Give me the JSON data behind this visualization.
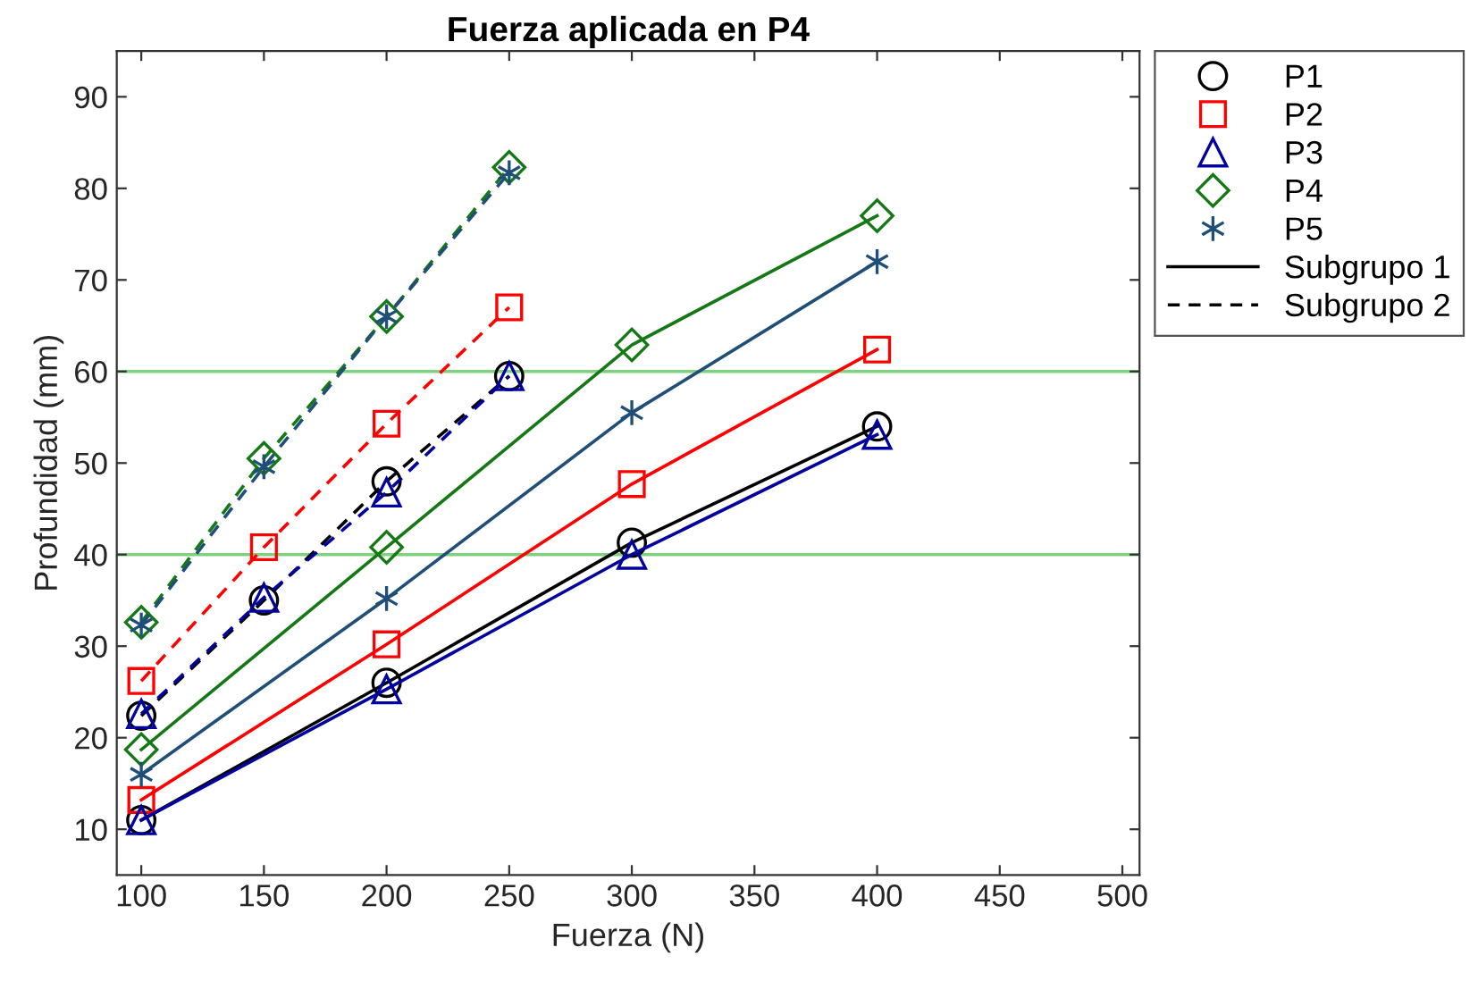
{
  "chart_data": {
    "type": "line",
    "title": "Fuerza aplicada en P4",
    "xlabel": "Fuerza (N)",
    "ylabel": "Profundidad (mm)",
    "xlim": [
      90,
      507
    ],
    "ylim": [
      5,
      95
    ],
    "xticks": [
      100,
      150,
      200,
      250,
      300,
      350,
      400,
      450,
      500
    ],
    "yticks": [
      10,
      20,
      30,
      40,
      50,
      60,
      70,
      80,
      90
    ],
    "grid": false,
    "legend": "right",
    "ref_lines": [
      {
        "axis": "y",
        "value": 40,
        "color": "#7fd17f"
      },
      {
        "axis": "y",
        "value": 60,
        "color": "#7fd17f"
      }
    ],
    "series": [
      {
        "name": "P1",
        "color": "#000000",
        "marker": "circle",
        "line_style": "solid",
        "x": [
          100,
          200,
          300,
          400
        ],
        "values": [
          11,
          26,
          41.3,
          54
        ]
      },
      {
        "name": "P2",
        "color": "#ff0000",
        "marker": "square",
        "line_style": "solid",
        "x": [
          100,
          200,
          300,
          400
        ],
        "values": [
          13.2,
          30.2,
          47.7,
          62.4
        ]
      },
      {
        "name": "P3",
        "color": "#0000a0",
        "marker": "triangle",
        "line_style": "solid",
        "x": [
          100,
          200,
          300,
          400
        ],
        "values": [
          11,
          25.3,
          40,
          53.1
        ]
      },
      {
        "name": "P4",
        "color": "#147814",
        "marker": "diamond",
        "line_style": "solid",
        "x": [
          100,
          200,
          300,
          400
        ],
        "values": [
          18.7,
          40.8,
          62.9,
          77
        ]
      },
      {
        "name": "P5",
        "color": "#1f4e79",
        "marker": "cross",
        "line_style": "solid",
        "x": [
          100,
          200,
          300,
          400
        ],
        "values": [
          16,
          35.2,
          55.5,
          72
        ]
      },
      {
        "color": "#000000",
        "marker": "circle",
        "line_style": "dashed",
        "x": [
          100,
          150,
          200,
          250
        ],
        "values": [
          22.4,
          35,
          48,
          59.5
        ]
      },
      {
        "color": "#ff0000",
        "marker": "square",
        "line_style": "dashed",
        "x": [
          100,
          150,
          200,
          250
        ],
        "values": [
          26.2,
          40.8,
          54.3,
          67
        ]
      },
      {
        "color": "#0000a0",
        "marker": "triangle",
        "line_style": "dashed",
        "x": [
          100,
          150,
          200,
          250
        ],
        "values": [
          22.6,
          35.3,
          46.8,
          59.5
        ]
      },
      {
        "color": "#147814",
        "marker": "diamond",
        "line_style": "dashed",
        "x": [
          100,
          150,
          200,
          250
        ],
        "values": [
          32.6,
          50.5,
          66,
          82.3
        ]
      },
      {
        "color": "#1f4e79",
        "marker": "cross",
        "line_style": "dashed",
        "x": [
          100,
          150,
          200,
          250
        ],
        "values": [
          32.3,
          49.6,
          66,
          81.7
        ]
      }
    ],
    "annotations": [
      "Subgrupo 1",
      "Subgrupo 2"
    ]
  }
}
